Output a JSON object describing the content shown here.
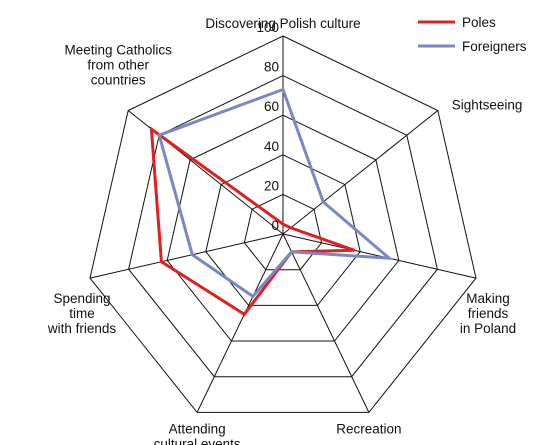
{
  "chart_data": {
    "type": "radar",
    "categories": [
      [
        "Discovering Polish culture"
      ],
      [
        "Sightseeing"
      ],
      [
        "Making",
        "friends",
        "in Poland"
      ],
      [
        "Recreation"
      ],
      [
        "Attending",
        "cultural events"
      ],
      [
        "Spending",
        "time",
        "with friends"
      ],
      [
        "Meeting Catholics",
        "from other",
        "countries"
      ]
    ],
    "rlim": [
      0,
      100
    ],
    "ticks": [
      0,
      20,
      40,
      60,
      80,
      100
    ],
    "series": [
      {
        "name": "Poles",
        "color": "#e02020",
        "values": [
          5,
          5,
          37,
          10,
          45,
          63,
          85
        ]
      },
      {
        "name": "Foreigners",
        "color": "#7b86c4",
        "values": [
          73,
          26,
          55,
          10,
          35,
          47,
          80
        ]
      }
    ],
    "legend_position": "top-right",
    "grid": true
  }
}
